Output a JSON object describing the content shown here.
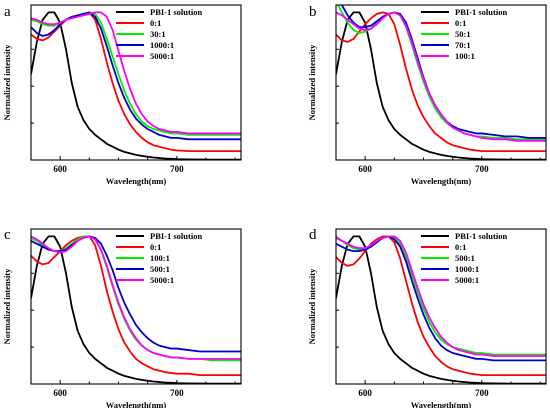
{
  "chart_data": [
    {
      "panel": "a",
      "type": "line",
      "xlabel": "Wavelength(nm)",
      "ylabel": "Normalized intensity",
      "xlim": [
        575,
        755
      ],
      "ylim": [
        0,
        1.05
      ],
      "xticks": [
        600,
        700
      ],
      "grid": false,
      "legend": "top-right",
      "x": [
        575,
        580,
        585,
        590,
        595,
        600,
        605,
        610,
        615,
        620,
        625,
        630,
        635,
        640,
        645,
        650,
        655,
        660,
        665,
        670,
        675,
        680,
        685,
        690,
        695,
        700,
        710,
        720,
        730,
        740,
        755
      ],
      "series": [
        {
          "name": "PBI-1 solution",
          "color": "#000000",
          "values": [
            0.58,
            0.8,
            0.95,
            1.0,
            1.0,
            0.93,
            0.75,
            0.52,
            0.36,
            0.27,
            0.21,
            0.17,
            0.14,
            0.11,
            0.09,
            0.07,
            0.055,
            0.045,
            0.035,
            0.028,
            0.022,
            0.017,
            0.013,
            0.01,
            0.008,
            0.006,
            0.004,
            0.003,
            0.002,
            0.002,
            0.002
          ]
        },
        {
          "name": "0:1",
          "color": "#ff0000",
          "values": [
            0.85,
            0.82,
            0.81,
            0.83,
            0.87,
            0.91,
            0.95,
            0.97,
            0.98,
            0.99,
            1.0,
            0.95,
            0.82,
            0.66,
            0.52,
            0.4,
            0.31,
            0.24,
            0.19,
            0.15,
            0.12,
            0.1,
            0.09,
            0.08,
            0.07,
            0.065,
            0.06,
            0.06,
            0.06,
            0.06,
            0.06
          ]
        },
        {
          "name": "30:1",
          "color": "#00ee00",
          "values": [
            0.95,
            0.94,
            0.92,
            0.91,
            0.91,
            0.93,
            0.95,
            0.97,
            0.98,
            0.99,
            1.0,
            0.99,
            0.93,
            0.82,
            0.7,
            0.58,
            0.47,
            0.38,
            0.31,
            0.26,
            0.23,
            0.21,
            0.2,
            0.19,
            0.18,
            0.18,
            0.17,
            0.17,
            0.17,
            0.17,
            0.17
          ]
        },
        {
          "name": "1000:1",
          "color": "#0000cc",
          "values": [
            0.9,
            0.86,
            0.84,
            0.85,
            0.88,
            0.92,
            0.95,
            0.97,
            0.98,
            0.99,
            1.0,
            0.97,
            0.89,
            0.77,
            0.64,
            0.52,
            0.42,
            0.34,
            0.28,
            0.24,
            0.21,
            0.19,
            0.17,
            0.16,
            0.15,
            0.15,
            0.14,
            0.14,
            0.14,
            0.14,
            0.14
          ]
        },
        {
          "name": "5000:1",
          "color": "#ff00ff",
          "values": [
            0.96,
            0.95,
            0.93,
            0.92,
            0.92,
            0.93,
            0.95,
            0.96,
            0.97,
            0.98,
            0.99,
            1.0,
            1.0,
            0.97,
            0.88,
            0.74,
            0.6,
            0.48,
            0.38,
            0.31,
            0.26,
            0.23,
            0.21,
            0.2,
            0.19,
            0.19,
            0.18,
            0.18,
            0.18,
            0.18,
            0.18
          ]
        }
      ]
    },
    {
      "panel": "b",
      "type": "line",
      "xlabel": "Wavelength(nm)",
      "ylabel": "Normalized intensity",
      "xlim": [
        575,
        755
      ],
      "ylim": [
        0,
        1.05
      ],
      "xticks": [
        600,
        700
      ],
      "grid": false,
      "legend": "top-right",
      "x": [
        575,
        580,
        585,
        590,
        595,
        600,
        605,
        610,
        615,
        620,
        625,
        630,
        635,
        640,
        645,
        650,
        655,
        660,
        665,
        670,
        675,
        680,
        685,
        690,
        695,
        700,
        710,
        720,
        730,
        740,
        755
      ],
      "series": [
        {
          "name": "PBI-1 solution",
          "color": "#000000",
          "values": [
            0.58,
            0.8,
            0.95,
            1.0,
            1.0,
            0.93,
            0.75,
            0.52,
            0.36,
            0.27,
            0.21,
            0.17,
            0.14,
            0.11,
            0.09,
            0.07,
            0.055,
            0.045,
            0.035,
            0.028,
            0.022,
            0.017,
            0.013,
            0.01,
            0.008,
            0.006,
            0.004,
            0.003,
            0.002,
            0.002,
            0.002
          ]
        },
        {
          "name": "0:1",
          "color": "#ff0000",
          "values": [
            0.85,
            0.81,
            0.8,
            0.82,
            0.87,
            0.92,
            0.96,
            0.99,
            1.0,
            0.99,
            0.92,
            0.78,
            0.62,
            0.48,
            0.37,
            0.29,
            0.23,
            0.18,
            0.15,
            0.12,
            0.1,
            0.09,
            0.08,
            0.07,
            0.065,
            0.06,
            0.06,
            0.06,
            0.06,
            0.06,
            0.06
          ]
        },
        {
          "name": "50:1",
          "color": "#00ee00",
          "values": [
            1.08,
            1.0,
            0.93,
            0.88,
            0.86,
            0.87,
            0.89,
            0.93,
            0.97,
            0.99,
            1.0,
            0.98,
            0.9,
            0.78,
            0.65,
            0.53,
            0.43,
            0.35,
            0.29,
            0.25,
            0.22,
            0.2,
            0.18,
            0.17,
            0.16,
            0.16,
            0.15,
            0.15,
            0.14,
            0.14,
            0.14
          ]
        },
        {
          "name": "70:1",
          "color": "#0000cc",
          "values": [
            1.1,
            1.05,
            0.98,
            0.93,
            0.9,
            0.9,
            0.91,
            0.94,
            0.97,
            0.99,
            1.0,
            0.99,
            0.93,
            0.82,
            0.69,
            0.56,
            0.45,
            0.37,
            0.31,
            0.26,
            0.23,
            0.21,
            0.2,
            0.19,
            0.18,
            0.18,
            0.17,
            0.16,
            0.16,
            0.15,
            0.15
          ]
        },
        {
          "name": "100:1",
          "color": "#ff00ff",
          "values": [
            1.0,
            0.98,
            0.95,
            0.92,
            0.89,
            0.88,
            0.89,
            0.92,
            0.96,
            0.99,
            1.0,
            0.98,
            0.91,
            0.8,
            0.67,
            0.55,
            0.45,
            0.37,
            0.31,
            0.26,
            0.22,
            0.2,
            0.18,
            0.17,
            0.16,
            0.15,
            0.14,
            0.14,
            0.13,
            0.13,
            0.13
          ]
        }
      ]
    },
    {
      "panel": "c",
      "type": "line",
      "xlabel": "Wavelength(nm)",
      "ylabel": "Normalized intensity",
      "xlim": [
        575,
        755
      ],
      "ylim": [
        0,
        1.05
      ],
      "xticks": [
        600,
        700
      ],
      "grid": false,
      "legend": "top-right",
      "x": [
        575,
        580,
        585,
        590,
        595,
        600,
        605,
        610,
        615,
        620,
        625,
        630,
        635,
        640,
        645,
        650,
        655,
        660,
        665,
        670,
        675,
        680,
        685,
        690,
        695,
        700,
        710,
        720,
        730,
        740,
        755
      ],
      "series": [
        {
          "name": "PBI-1 solution",
          "color": "#000000",
          "values": [
            0.58,
            0.8,
            0.95,
            1.0,
            1.0,
            0.93,
            0.75,
            0.52,
            0.36,
            0.27,
            0.21,
            0.17,
            0.14,
            0.11,
            0.09,
            0.07,
            0.055,
            0.045,
            0.035,
            0.028,
            0.022,
            0.017,
            0.013,
            0.01,
            0.008,
            0.006,
            0.004,
            0.003,
            0.002,
            0.002,
            0.002
          ]
        },
        {
          "name": "0:1",
          "color": "#ff0000",
          "values": [
            0.87,
            0.83,
            0.81,
            0.82,
            0.86,
            0.9,
            0.94,
            0.97,
            0.99,
            1.0,
            1.0,
            0.94,
            0.8,
            0.63,
            0.49,
            0.37,
            0.28,
            0.22,
            0.17,
            0.14,
            0.12,
            0.1,
            0.09,
            0.08,
            0.075,
            0.07,
            0.07,
            0.06,
            0.06,
            0.06,
            0.06
          ]
        },
        {
          "name": "100:1",
          "color": "#00ee00",
          "values": [
            0.99,
            0.97,
            0.94,
            0.92,
            0.9,
            0.9,
            0.92,
            0.95,
            0.98,
            1.0,
            1.0,
            0.98,
            0.91,
            0.79,
            0.66,
            0.54,
            0.44,
            0.36,
            0.3,
            0.26,
            0.23,
            0.21,
            0.2,
            0.19,
            0.18,
            0.18,
            0.17,
            0.17,
            0.16,
            0.16,
            0.16
          ]
        },
        {
          "name": "500:1",
          "color": "#0000cc",
          "values": [
            0.97,
            0.95,
            0.93,
            0.91,
            0.9,
            0.9,
            0.91,
            0.94,
            0.97,
            0.99,
            1.0,
            0.99,
            0.95,
            0.87,
            0.77,
            0.65,
            0.55,
            0.47,
            0.4,
            0.35,
            0.31,
            0.28,
            0.26,
            0.25,
            0.24,
            0.24,
            0.23,
            0.22,
            0.22,
            0.22,
            0.22
          ]
        },
        {
          "name": "5000:1",
          "color": "#ff00ff",
          "values": [
            1.0,
            0.98,
            0.95,
            0.92,
            0.9,
            0.89,
            0.9,
            0.93,
            0.97,
            0.99,
            1.0,
            0.98,
            0.91,
            0.8,
            0.67,
            0.55,
            0.45,
            0.37,
            0.31,
            0.26,
            0.23,
            0.21,
            0.2,
            0.19,
            0.18,
            0.18,
            0.17,
            0.17,
            0.17,
            0.17,
            0.17
          ]
        }
      ]
    },
    {
      "panel": "d",
      "type": "line",
      "xlabel": "Wavelength(nm)",
      "ylabel": "Normalized intensity",
      "xlim": [
        575,
        755
      ],
      "ylim": [
        0,
        1.05
      ],
      "xticks": [
        600,
        700
      ],
      "grid": false,
      "legend": "top-right",
      "x": [
        575,
        580,
        585,
        590,
        595,
        600,
        605,
        610,
        615,
        620,
        625,
        630,
        635,
        640,
        645,
        650,
        655,
        660,
        665,
        670,
        675,
        680,
        685,
        690,
        695,
        700,
        710,
        720,
        730,
        740,
        755
      ],
      "series": [
        {
          "name": "PBI-1 solution",
          "color": "#000000",
          "values": [
            0.58,
            0.8,
            0.95,
            1.0,
            1.0,
            0.93,
            0.75,
            0.52,
            0.36,
            0.27,
            0.21,
            0.17,
            0.14,
            0.11,
            0.09,
            0.07,
            0.055,
            0.045,
            0.035,
            0.028,
            0.022,
            0.017,
            0.013,
            0.01,
            0.008,
            0.006,
            0.004,
            0.003,
            0.002,
            0.002,
            0.002
          ]
        },
        {
          "name": "0:1",
          "color": "#ff0000",
          "values": [
            0.86,
            0.82,
            0.8,
            0.81,
            0.85,
            0.9,
            0.95,
            0.98,
            1.0,
            1.0,
            0.96,
            0.85,
            0.7,
            0.55,
            0.42,
            0.32,
            0.25,
            0.19,
            0.15,
            0.12,
            0.1,
            0.09,
            0.08,
            0.07,
            0.065,
            0.06,
            0.06,
            0.06,
            0.06,
            0.06,
            0.06
          ]
        },
        {
          "name": "500:1",
          "color": "#00ee00",
          "values": [
            1.0,
            0.97,
            0.94,
            0.92,
            0.91,
            0.91,
            0.93,
            0.96,
            0.99,
            1.0,
            0.99,
            0.95,
            0.86,
            0.74,
            0.62,
            0.51,
            0.42,
            0.35,
            0.3,
            0.27,
            0.25,
            0.24,
            0.23,
            0.22,
            0.21,
            0.21,
            0.2,
            0.2,
            0.2,
            0.2,
            0.2
          ]
        },
        {
          "name": "1000:1",
          "color": "#0000cc",
          "values": [
            0.95,
            0.93,
            0.91,
            0.9,
            0.9,
            0.91,
            0.93,
            0.96,
            0.99,
            1.0,
            0.98,
            0.93,
            0.83,
            0.7,
            0.58,
            0.47,
            0.38,
            0.31,
            0.26,
            0.23,
            0.21,
            0.2,
            0.19,
            0.18,
            0.17,
            0.17,
            0.16,
            0.16,
            0.16,
            0.16,
            0.16
          ]
        },
        {
          "name": "5000:1",
          "color": "#ff00ff",
          "values": [
            0.99,
            0.97,
            0.95,
            0.93,
            0.92,
            0.92,
            0.94,
            0.97,
            0.99,
            1.0,
            1.0,
            0.97,
            0.89,
            0.77,
            0.65,
            0.54,
            0.45,
            0.38,
            0.32,
            0.28,
            0.25,
            0.23,
            0.22,
            0.21,
            0.2,
            0.2,
            0.19,
            0.19,
            0.19,
            0.19,
            0.19
          ]
        }
      ]
    }
  ]
}
